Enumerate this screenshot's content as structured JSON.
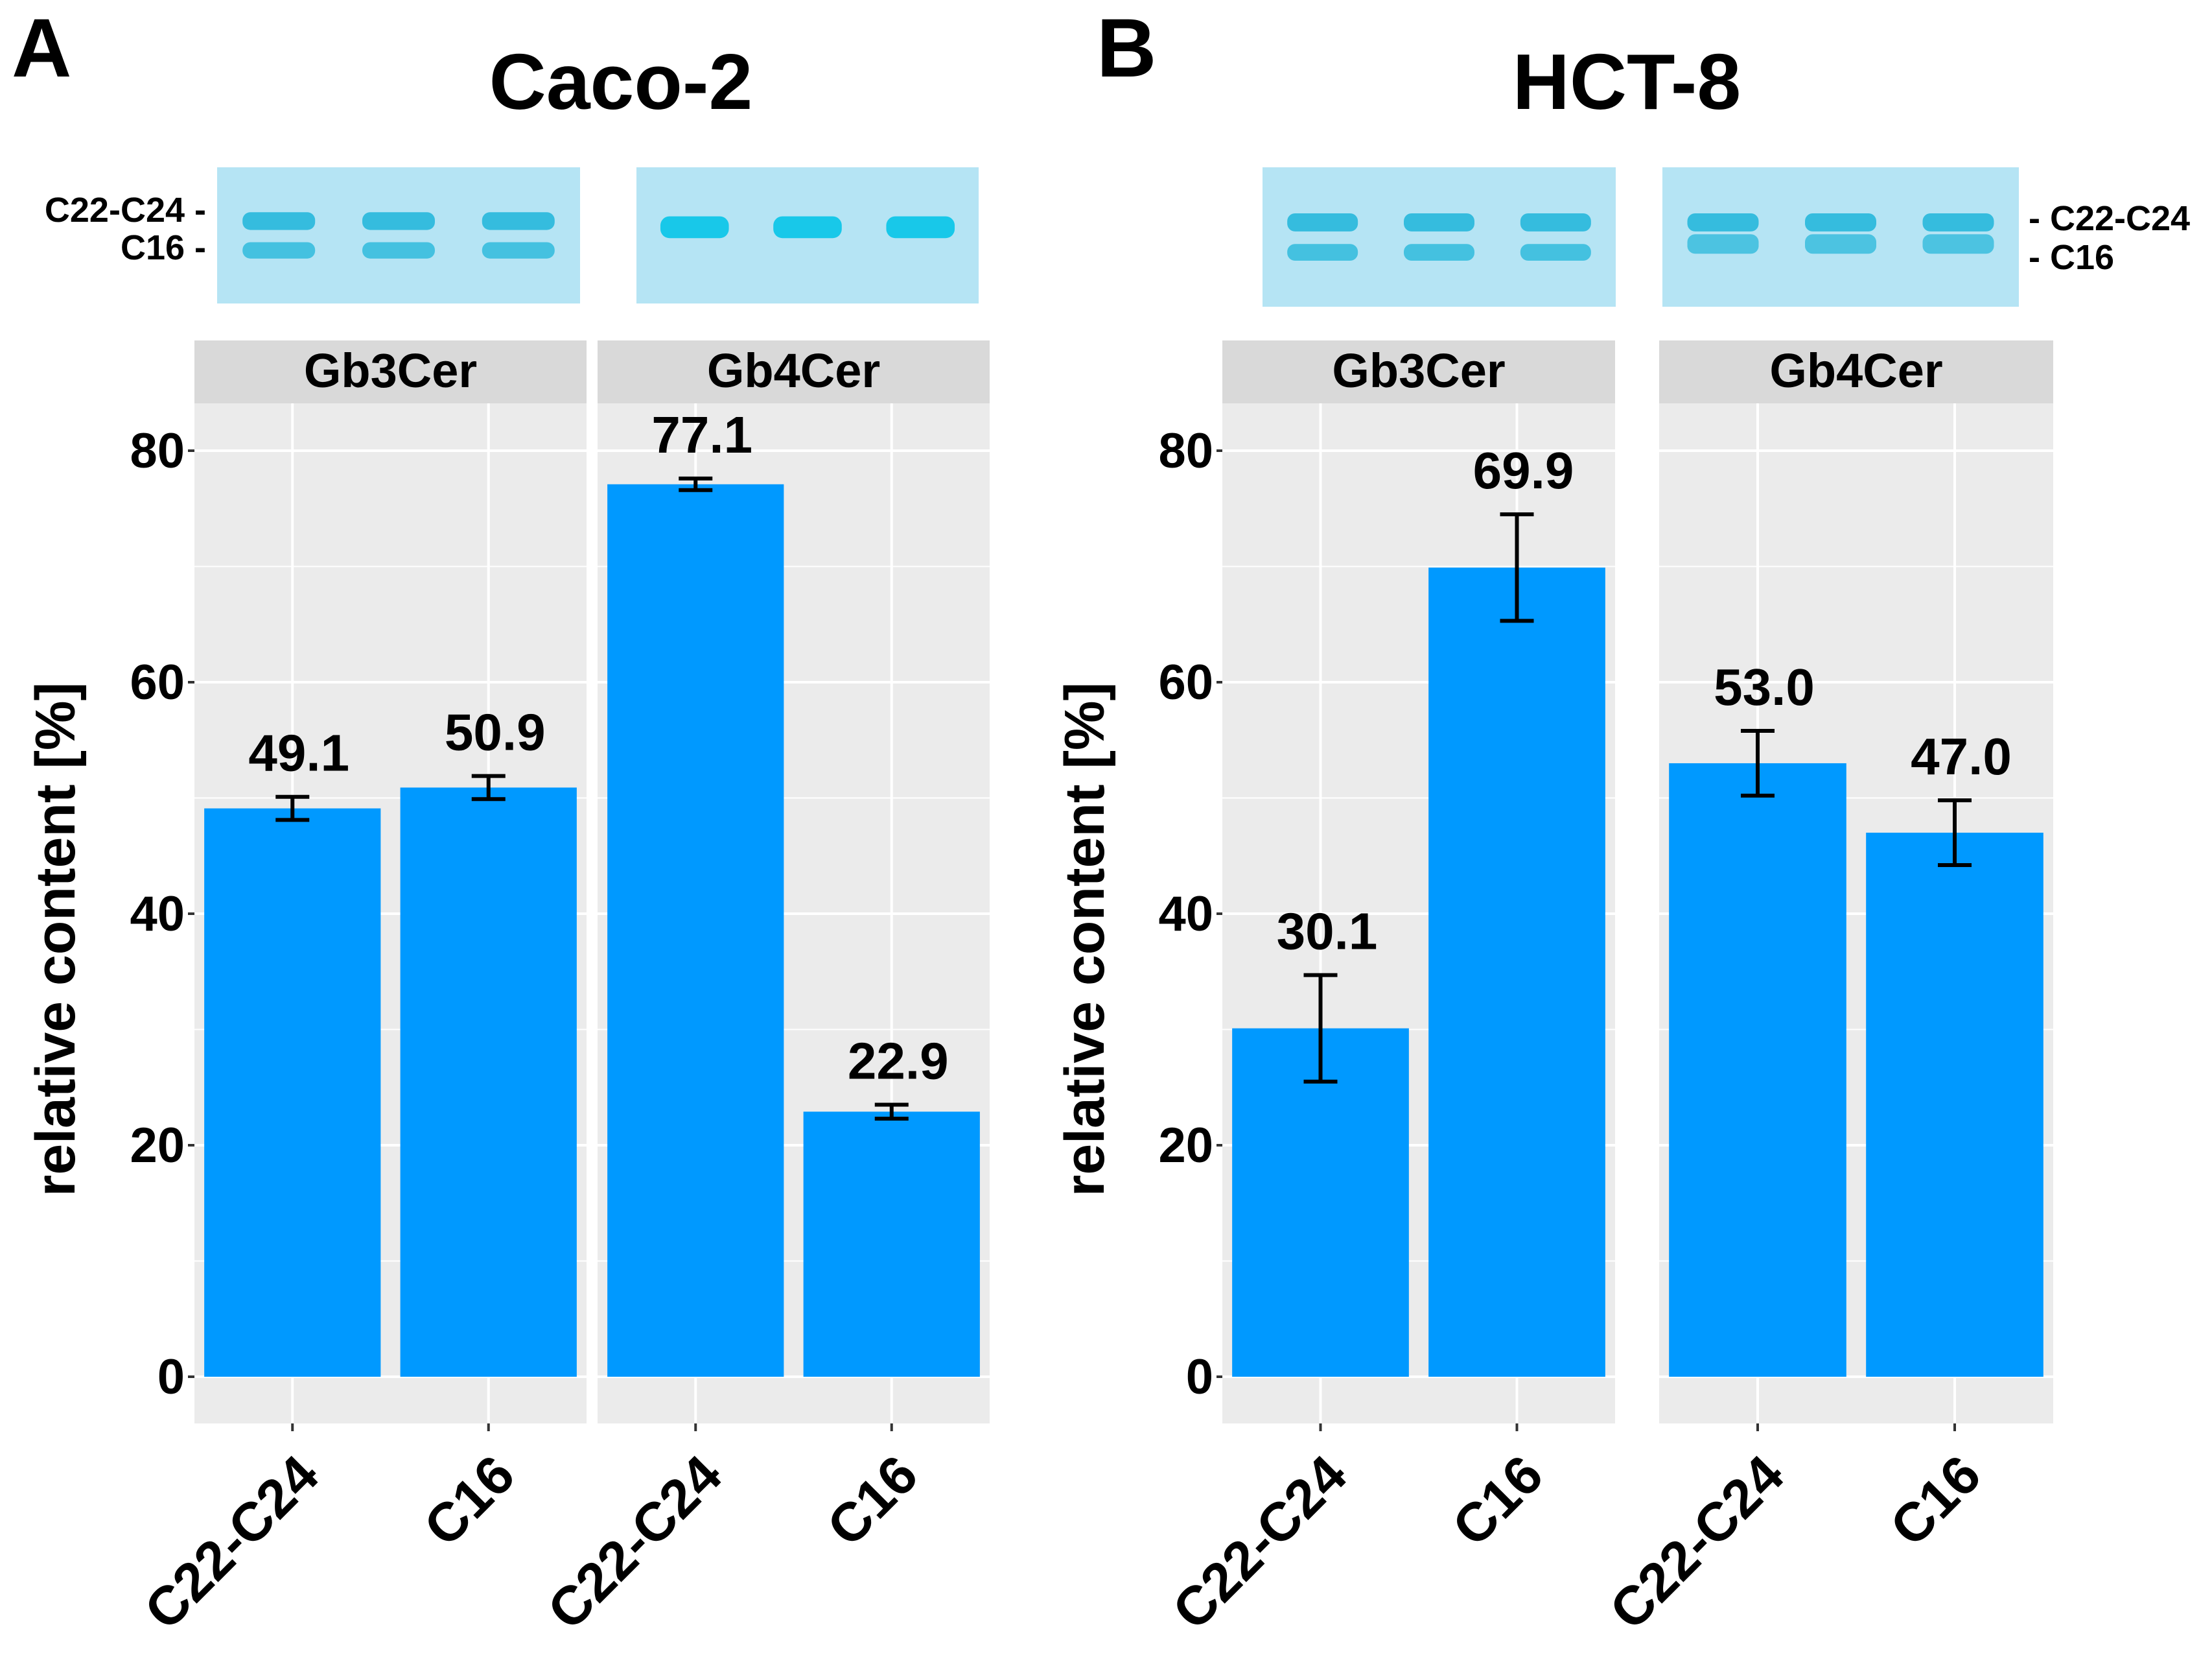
{
  "colors": {
    "bar": "#0099FF",
    "panel_bg": "#EBEBEB",
    "strip_bg": "#D9D9D9",
    "grid": "#FFFFFF",
    "blot_bg": "#B5E4F4",
    "band": "#1FB5D9"
  },
  "panels": [
    {
      "letter": "A",
      "cell_line": "Caco-2",
      "blot_labels": [
        "C22-C24 -",
        "C16 -"
      ],
      "blot_label_side": "left"
    },
    {
      "letter": "B",
      "cell_line": "HCT-8",
      "blot_labels": [
        "- C22-C24",
        "- C16"
      ],
      "blot_label_side": "right"
    }
  ],
  "chart_data": [
    {
      "type": "bar",
      "title": "Caco-2",
      "ylabel": "relative content [%]",
      "ylim": [
        0,
        80
      ],
      "yticks": [
        0,
        20,
        40,
        60,
        80
      ],
      "grid": true,
      "facets": [
        {
          "name": "Gb3Cer",
          "categories": [
            "C22-C24",
            "C16"
          ],
          "values": [
            49.1,
            50.9
          ],
          "labels": [
            "49.1",
            "50.9"
          ],
          "errors": [
            1.0,
            1.0
          ]
        },
        {
          "name": "Gb4Cer",
          "categories": [
            "C22-C24",
            "C16"
          ],
          "values": [
            77.1,
            22.9
          ],
          "labels": [
            "77.1",
            "22.9"
          ],
          "errors": [
            0.5,
            0.6
          ]
        }
      ]
    },
    {
      "type": "bar",
      "title": "HCT-8",
      "ylabel": "relative content [%]",
      "ylim": [
        0,
        80
      ],
      "yticks": [
        0,
        20,
        40,
        60,
        80
      ],
      "grid": true,
      "facets": [
        {
          "name": "Gb3Cer",
          "categories": [
            "C22-C24",
            "C16"
          ],
          "values": [
            30.1,
            69.9
          ],
          "labels": [
            "30.1",
            "69.9"
          ],
          "errors": [
            4.6,
            4.6
          ]
        },
        {
          "name": "Gb4Cer",
          "categories": [
            "C22-C24",
            "C16"
          ],
          "values": [
            53.0,
            47.0
          ],
          "labels": [
            "53.0",
            "47.0"
          ],
          "errors": [
            2.8,
            2.8
          ]
        }
      ]
    }
  ]
}
